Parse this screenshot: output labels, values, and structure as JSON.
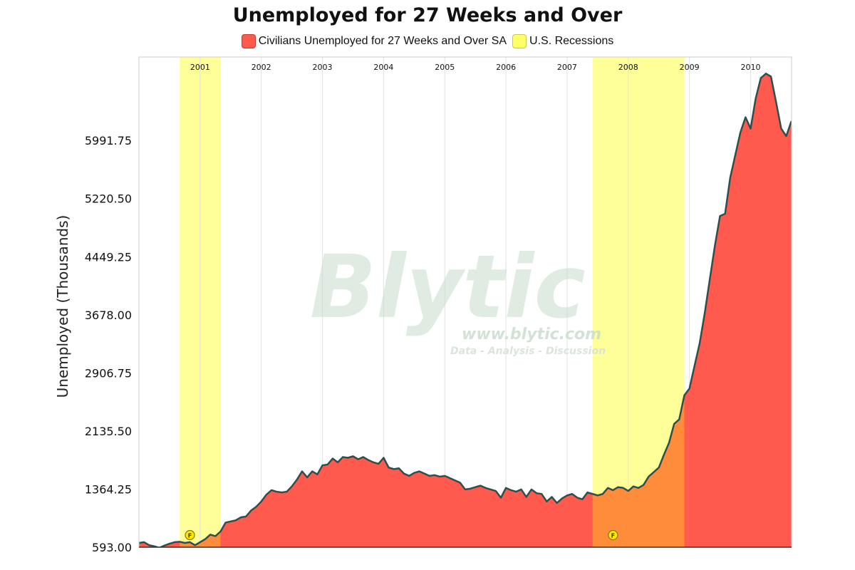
{
  "chart_data": {
    "type": "area",
    "title": "Unemployed for 27 Weeks and Over",
    "ylabel": "Unemployed (Thousands)",
    "xlabel": "",
    "ylim": [
      593.0,
      7100
    ],
    "y_ticks": [
      "593.00",
      "1364.25",
      "2135.50",
      "2906.75",
      "3678.00",
      "4449.25",
      "5220.50",
      "5991.75"
    ],
    "x_year_labels": [
      "2001",
      "2002",
      "2003",
      "2004",
      "2005",
      "2006",
      "2007",
      "2008",
      "2009",
      "2010"
    ],
    "x_range": [
      2000.0,
      2010.67
    ],
    "grid": true,
    "legend_position": "top-center",
    "series": [
      {
        "name": "Civilians Unemployed for 27 Weeks and Over SA",
        "color": "#ff5a4d",
        "x": [
          2000.0,
          2000.083,
          2000.167,
          2000.25,
          2000.333,
          2000.417,
          2000.5,
          2000.583,
          2000.667,
          2000.75,
          2000.833,
          2000.917,
          2001.0,
          2001.083,
          2001.167,
          2001.25,
          2001.333,
          2001.417,
          2001.5,
          2001.583,
          2001.667,
          2001.75,
          2001.833,
          2001.917,
          2002.0,
          2002.083,
          2002.167,
          2002.25,
          2002.333,
          2002.417,
          2002.5,
          2002.583,
          2002.667,
          2002.75,
          2002.833,
          2002.917,
          2003.0,
          2003.083,
          2003.167,
          2003.25,
          2003.333,
          2003.417,
          2003.5,
          2003.583,
          2003.667,
          2003.75,
          2003.833,
          2003.917,
          2004.0,
          2004.083,
          2004.167,
          2004.25,
          2004.333,
          2004.417,
          2004.5,
          2004.583,
          2004.667,
          2004.75,
          2004.833,
          2004.917,
          2005.0,
          2005.083,
          2005.167,
          2005.25,
          2005.333,
          2005.417,
          2005.5,
          2005.583,
          2005.667,
          2005.75,
          2005.833,
          2005.917,
          2006.0,
          2006.083,
          2006.167,
          2006.25,
          2006.333,
          2006.417,
          2006.5,
          2006.583,
          2006.667,
          2006.75,
          2006.833,
          2006.917,
          2007.0,
          2007.083,
          2007.167,
          2007.25,
          2007.333,
          2007.417,
          2007.5,
          2007.583,
          2007.667,
          2007.75,
          2007.833,
          2007.917,
          2008.0,
          2008.083,
          2008.167,
          2008.25,
          2008.333,
          2008.417,
          2008.5,
          2008.583,
          2008.667,
          2008.75,
          2008.833,
          2008.917,
          2009.0,
          2009.083,
          2009.167,
          2009.25,
          2009.333,
          2009.417,
          2009.5,
          2009.583,
          2009.667,
          2009.75,
          2009.833,
          2009.917,
          2010.0,
          2010.083,
          2010.167,
          2010.25,
          2010.333,
          2010.417,
          2010.5,
          2010.583,
          2010.667
        ],
        "values": [
          650,
          660,
          620,
          605,
          585,
          615,
          640,
          660,
          665,
          650,
          660,
          620,
          660,
          700,
          760,
          740,
          800,
          920,
          935,
          950,
          990,
          1000,
          1080,
          1130,
          1200,
          1290,
          1350,
          1330,
          1320,
          1330,
          1400,
          1490,
          1600,
          1520,
          1600,
          1560,
          1680,
          1690,
          1770,
          1720,
          1790,
          1780,
          1800,
          1760,
          1790,
          1750,
          1720,
          1700,
          1780,
          1650,
          1630,
          1640,
          1570,
          1540,
          1580,
          1600,
          1570,
          1540,
          1550,
          1530,
          1540,
          1510,
          1480,
          1450,
          1360,
          1370,
          1390,
          1410,
          1380,
          1360,
          1340,
          1250,
          1380,
          1350,
          1330,
          1360,
          1260,
          1360,
          1310,
          1300,
          1200,
          1260,
          1180,
          1240,
          1280,
          1300,
          1250,
          1230,
          1320,
          1300,
          1280,
          1300,
          1380,
          1350,
          1390,
          1380,
          1340,
          1400,
          1380,
          1420,
          1530,
          1590,
          1650,
          1820,
          1980,
          2230,
          2290,
          2610,
          2700,
          3000,
          3300,
          3700,
          4150,
          4600,
          4990,
          5020,
          5500,
          5800,
          6100,
          6300,
          6150,
          6550,
          6820,
          6880,
          6840,
          6500,
          6150,
          6050,
          6250
        ],
        "fill_color_in_recession": "#ff8c3a"
      }
    ],
    "recessions": {
      "name": "U.S. Recessions",
      "color": "#ffff99",
      "periods": [
        [
          2000.667,
          2001.333
        ],
        [
          2007.417,
          2008.917
        ]
      ]
    },
    "annotation_markers": [
      {
        "x": 2000.833,
        "label": "F"
      },
      {
        "x": 2007.75,
        "label": "F"
      }
    ]
  },
  "watermark": {
    "brand": "Blytic",
    "url": "www.blytic.com",
    "tagline": "Data - Analysis - Discussion"
  }
}
